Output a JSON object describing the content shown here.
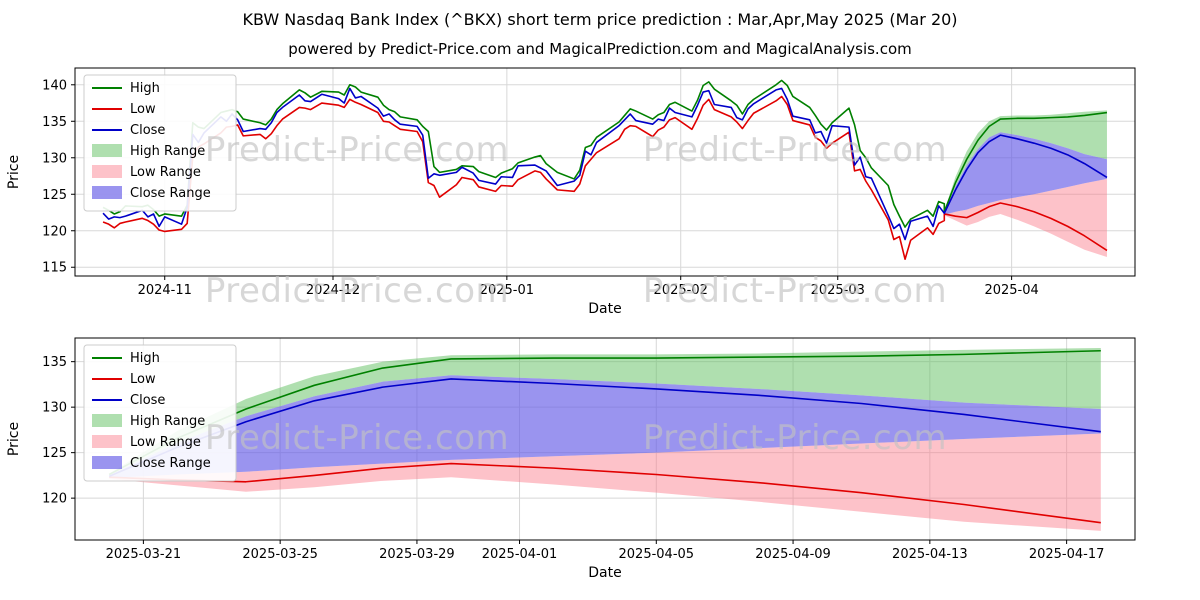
{
  "title": "KBW Nasdaq Bank Index (^BKX) short term price prediction : Mar,Apr,May 2025 (Mar 20)",
  "subtitle": "powered by Predict-Price.com and MagicalPrediction.com and MagicalAnalysis.com",
  "watermark": "Predict-Price.com",
  "colors": {
    "high": "#008000",
    "low": "#e00000",
    "close": "#0000c8",
    "high_range": "rgba(96,192,96,0.5)",
    "low_range": "rgba(250,120,135,0.45)",
    "close_range": "rgba(100,90,230,0.65)"
  },
  "legend": [
    {
      "label": "High",
      "type": "line",
      "color_key": "high"
    },
    {
      "label": "Low",
      "type": "line",
      "color_key": "low"
    },
    {
      "label": "Close",
      "type": "line",
      "color_key": "close"
    },
    {
      "label": "High Range",
      "type": "patch",
      "color_key": "high_range"
    },
    {
      "label": "Low Range",
      "type": "patch",
      "color_key": "low_range"
    },
    {
      "label": "Close Range",
      "type": "patch",
      "color_key": "close_range"
    }
  ],
  "chart_data": {
    "type": "line",
    "charts": [
      {
        "name": "price-history-with-prediction",
        "xlabel": "Date",
        "ylabel": "Price",
        "x_range": [
          "2024-10-16",
          "2025-04-23"
        ],
        "y_range": [
          113.8,
          142.3
        ],
        "y_ticks": [
          115,
          120,
          125,
          130,
          135,
          140
        ],
        "x_ticks": [
          {
            "value": "2024-11-01",
            "label": "2024-11"
          },
          {
            "value": "2024-12-01",
            "label": "2024-12"
          },
          {
            "value": "2025-01-01",
            "label": "2025-01"
          },
          {
            "value": "2025-02-01",
            "label": "2025-02"
          },
          {
            "value": "2025-03-01",
            "label": "2025-03"
          },
          {
            "value": "2025-04-01",
            "label": "2025-04"
          }
        ],
        "include": [
          "history",
          "prediction"
        ]
      },
      {
        "name": "prediction-detail",
        "xlabel": "Date",
        "ylabel": "Price",
        "x_range": [
          "2025-03-19",
          "2025-04-19"
        ],
        "y_range": [
          115.4,
          137.6
        ],
        "y_ticks": [
          120,
          125,
          130,
          135
        ],
        "x_ticks": [
          {
            "value": "2025-03-21",
            "label": "2025-03-21"
          },
          {
            "value": "2025-03-25",
            "label": "2025-03-25"
          },
          {
            "value": "2025-03-29",
            "label": "2025-03-29"
          },
          {
            "value": "2025-04-01",
            "label": "2025-04-01"
          },
          {
            "value": "2025-04-05",
            "label": "2025-04-05"
          },
          {
            "value": "2025-04-09",
            "label": "2025-04-09"
          },
          {
            "value": "2025-04-13",
            "label": "2025-04-13"
          },
          {
            "value": "2025-04-17",
            "label": "2025-04-17"
          }
        ],
        "include": [
          "prediction"
        ]
      }
    ],
    "history": {
      "dates": [
        "2024-10-21",
        "2024-10-22",
        "2024-10-23",
        "2024-10-24",
        "2024-10-25",
        "2024-10-28",
        "2024-10-29",
        "2024-10-30",
        "2024-10-31",
        "2024-11-01",
        "2024-11-04",
        "2024-11-05",
        "2024-11-06",
        "2024-11-07",
        "2024-11-08",
        "2024-11-11",
        "2024-11-12",
        "2024-11-13",
        "2024-11-14",
        "2024-11-15",
        "2024-11-18",
        "2024-11-19",
        "2024-11-20",
        "2024-11-21",
        "2024-11-22",
        "2024-11-25",
        "2024-11-26",
        "2024-11-27",
        "2024-11-29",
        "2024-12-02",
        "2024-12-03",
        "2024-12-04",
        "2024-12-05",
        "2024-12-06",
        "2024-12-09",
        "2024-12-10",
        "2024-12-11",
        "2024-12-12",
        "2024-12-13",
        "2024-12-16",
        "2024-12-17",
        "2024-12-18",
        "2024-12-19",
        "2024-12-20",
        "2024-12-23",
        "2024-12-24",
        "2024-12-26",
        "2024-12-27",
        "2024-12-30",
        "2024-12-31",
        "2025-01-02",
        "2025-01-03",
        "2025-01-06",
        "2025-01-07",
        "2025-01-08",
        "2025-01-10",
        "2025-01-13",
        "2025-01-14",
        "2025-01-15",
        "2025-01-16",
        "2025-01-17",
        "2025-01-21",
        "2025-01-22",
        "2025-01-23",
        "2025-01-24",
        "2025-01-27",
        "2025-01-28",
        "2025-01-29",
        "2025-01-30",
        "2025-01-31",
        "2025-02-03",
        "2025-02-04",
        "2025-02-05",
        "2025-02-06",
        "2025-02-07",
        "2025-02-10",
        "2025-02-11",
        "2025-02-12",
        "2025-02-13",
        "2025-02-14",
        "2025-02-18",
        "2025-02-19",
        "2025-02-20",
        "2025-02-21",
        "2025-02-24",
        "2025-02-25",
        "2025-02-26",
        "2025-02-27",
        "2025-02-28",
        "2025-03-03",
        "2025-03-04",
        "2025-03-05",
        "2025-03-06",
        "2025-03-07",
        "2025-03-10",
        "2025-03-11",
        "2025-03-12",
        "2025-03-13",
        "2025-03-14",
        "2025-03-17",
        "2025-03-18",
        "2025-03-19",
        "2025-03-20"
      ],
      "high": [
        123.2,
        122.8,
        122.3,
        122.6,
        123.4,
        123.3,
        123.5,
        122.9,
        122.0,
        122.3,
        122.0,
        123.5,
        134.8,
        134.2,
        134.0,
        136.2,
        136.4,
        136.6,
        136.3,
        135.3,
        134.8,
        134.5,
        135.3,
        136.6,
        137.4,
        139.3,
        138.9,
        138.3,
        139.1,
        139.0,
        138.6,
        140.0,
        139.7,
        139.0,
        138.3,
        137.2,
        136.6,
        136.3,
        135.6,
        135.2,
        134.3,
        133.6,
        128.8,
        128.0,
        128.4,
        128.9,
        128.8,
        128.1,
        127.3,
        127.9,
        128.5,
        129.3,
        130.1,
        130.3,
        129.2,
        128.0,
        127.1,
        128.3,
        131.4,
        131.7,
        132.8,
        134.9,
        135.8,
        136.7,
        136.4,
        135.3,
        135.9,
        136.2,
        137.3,
        137.6,
        136.4,
        137.9,
        139.9,
        140.4,
        139.4,
        137.8,
        137.2,
        136.0,
        137.3,
        138.0,
        140.0,
        140.6,
        139.9,
        138.4,
        136.9,
        135.8,
        134.6,
        133.8,
        134.8,
        136.8,
        134.5,
        131.0,
        130.0,
        128.6,
        126.2,
        123.6,
        122.0,
        120.5,
        121.6,
        122.8,
        122.0,
        124.0,
        123.7
      ],
      "low": [
        121.2,
        120.9,
        120.4,
        121.0,
        121.2,
        121.7,
        121.4,
        120.9,
        120.1,
        119.9,
        120.2,
        121.0,
        130.2,
        131.5,
        131.9,
        133.4,
        134.2,
        134.3,
        134.5,
        133.0,
        133.2,
        132.6,
        133.3,
        134.4,
        135.3,
        136.9,
        136.8,
        136.6,
        137.5,
        137.2,
        136.9,
        138.0,
        137.6,
        137.3,
        136.2,
        135.0,
        134.9,
        134.4,
        133.9,
        133.6,
        132.2,
        126.6,
        126.2,
        124.6,
        126.3,
        127.3,
        127.0,
        126.0,
        125.4,
        126.2,
        126.1,
        127.0,
        128.2,
        128.0,
        127.1,
        125.6,
        125.4,
        126.4,
        128.9,
        129.8,
        130.7,
        132.6,
        133.9,
        134.4,
        134.3,
        132.9,
        133.8,
        134.2,
        135.2,
        135.5,
        133.9,
        135.4,
        137.2,
        138.0,
        136.6,
        135.6,
        134.9,
        134.0,
        135.1,
        136.1,
        137.8,
        138.4,
        137.3,
        135.1,
        134.5,
        132.8,
        132.3,
        131.3,
        132.0,
        133.5,
        128.2,
        128.4,
        126.8,
        125.6,
        121.5,
        118.8,
        119.2,
        116.1,
        118.7,
        120.4,
        119.5,
        121.0,
        121.4
      ],
      "close": [
        122.4,
        121.6,
        121.9,
        121.8,
        122.0,
        122.8,
        121.9,
        122.3,
        120.6,
        121.9,
        120.9,
        123.2,
        133.2,
        132.1,
        133.4,
        135.6,
        135.0,
        136.0,
        135.2,
        133.6,
        134.0,
        133.9,
        134.8,
        136.2,
        136.9,
        138.6,
        137.8,
        137.7,
        138.7,
        138.1,
        137.5,
        139.5,
        138.2,
        138.4,
        136.8,
        135.7,
        136.0,
        135.2,
        134.6,
        134.3,
        133.1,
        127.2,
        127.8,
        127.6,
        128.0,
        128.7,
        127.9,
        126.9,
        126.4,
        127.4,
        127.3,
        128.9,
        129.0,
        128.6,
        128.2,
        126.2,
        126.8,
        127.6,
        130.9,
        130.4,
        132.1,
        134.4,
        135.2,
        136.0,
        135.1,
        134.6,
        135.3,
        135.1,
        136.8,
        136.2,
        135.6,
        137.2,
        139.0,
        139.2,
        137.3,
        136.9,
        135.5,
        135.2,
        136.7,
        137.4,
        139.3,
        139.5,
        138.0,
        135.7,
        135.2,
        133.4,
        133.6,
        132.0,
        134.4,
        134.2,
        129.0,
        130.1,
        127.4,
        127.2,
        122.1,
        120.3,
        120.9,
        118.8,
        121.3,
        122.0,
        120.6,
        123.4,
        122.4
      ]
    },
    "prediction": {
      "dates": [
        "2025-03-20",
        "2025-03-22",
        "2025-03-24",
        "2025-03-26",
        "2025-03-28",
        "2025-03-30",
        "2025-04-02",
        "2025-04-05",
        "2025-04-08",
        "2025-04-11",
        "2025-04-14",
        "2025-04-18"
      ],
      "high": [
        122.6,
        126.6,
        129.8,
        132.4,
        134.3,
        135.3,
        135.4,
        135.4,
        135.5,
        135.6,
        135.8,
        136.2
      ],
      "high_upper": [
        122.7,
        127.4,
        130.9,
        133.4,
        135.0,
        135.7,
        135.8,
        135.8,
        135.9,
        136.1,
        136.3,
        136.5
      ],
      "close": [
        122.4,
        125.6,
        128.4,
        130.7,
        132.2,
        133.1,
        132.6,
        132.0,
        131.3,
        130.4,
        129.2,
        127.3
      ],
      "close_upper": [
        122.5,
        126.1,
        129.0,
        131.2,
        132.8,
        133.5,
        133.1,
        132.6,
        132.0,
        131.3,
        130.5,
        129.8
      ],
      "close_lower": [
        122.2,
        122.6,
        122.9,
        123.4,
        123.8,
        124.2,
        124.6,
        125.0,
        125.5,
        126.0,
        126.5,
        127.1
      ],
      "low": [
        122.3,
        122.0,
        121.8,
        122.5,
        123.3,
        123.8,
        123.3,
        122.6,
        121.7,
        120.6,
        119.3,
        117.3
      ],
      "low_lower": [
        122.1,
        121.4,
        120.7,
        121.2,
        121.9,
        122.3,
        121.5,
        120.6,
        119.6,
        118.5,
        117.4,
        116.4
      ]
    }
  }
}
